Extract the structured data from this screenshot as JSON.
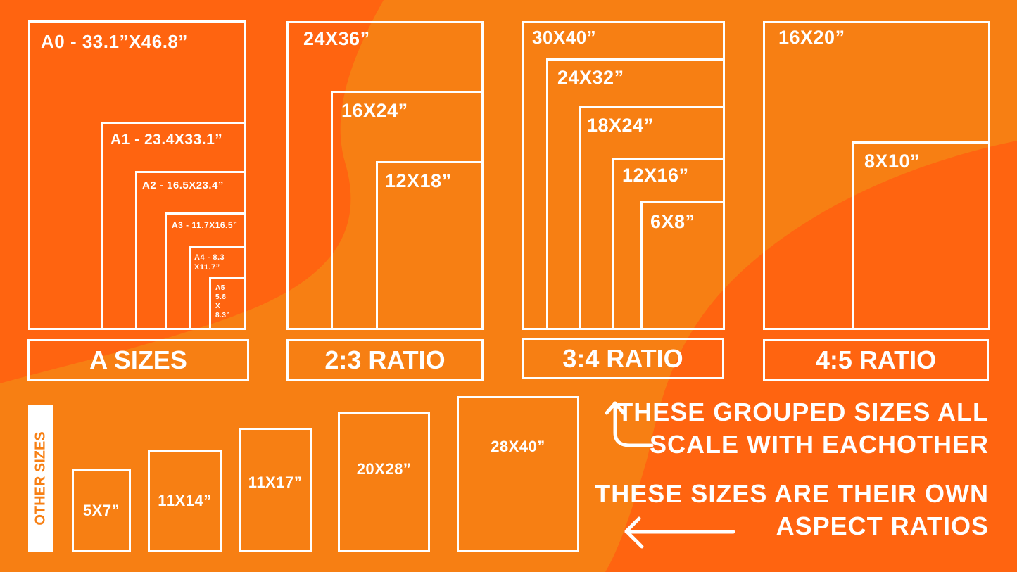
{
  "colors": {
    "dark_orange": "#ff6410",
    "light_orange": "#f77f13",
    "line": "#ffffff"
  },
  "a_sizes": {
    "caption": "A SIZES",
    "items": [
      "A0 - 33.1”X46.8”",
      "A1 - 23.4X33.1”",
      "A2 - 16.5X23.4”",
      "A3 - 11.7X16.5”",
      "A4 - 8.3",
      "X11.7”",
      "A5",
      "5.8",
      "X",
      "8.3”"
    ]
  },
  "ratio_2_3": {
    "caption": "2:3 RATIO",
    "items": [
      "24X36”",
      "16X24”",
      "12X18”"
    ]
  },
  "ratio_3_4": {
    "caption": "3:4 RATIO",
    "items": [
      "30X40”",
      "24X32”",
      "18X24”",
      "12X16”",
      "6X8”"
    ]
  },
  "ratio_4_5": {
    "caption": "4:5 RATIO",
    "items": [
      "16X20”",
      "8X10”"
    ]
  },
  "other_sizes": {
    "caption": "OTHER SIZES",
    "items": [
      "5X7”",
      "11X14”",
      "11X17”",
      "20X28”",
      "28X40”"
    ]
  },
  "notes": {
    "grouped_line1": "THESE GROUPED SIZES ALL",
    "grouped_line2": "SCALE WITH EACHOTHER",
    "own_line1": "THESE SIZES ARE THEIR OWN",
    "own_line2": "ASPECT RATIOS",
    "icons": [
      "arrow-up-curved-icon",
      "arrow-left-icon"
    ]
  }
}
